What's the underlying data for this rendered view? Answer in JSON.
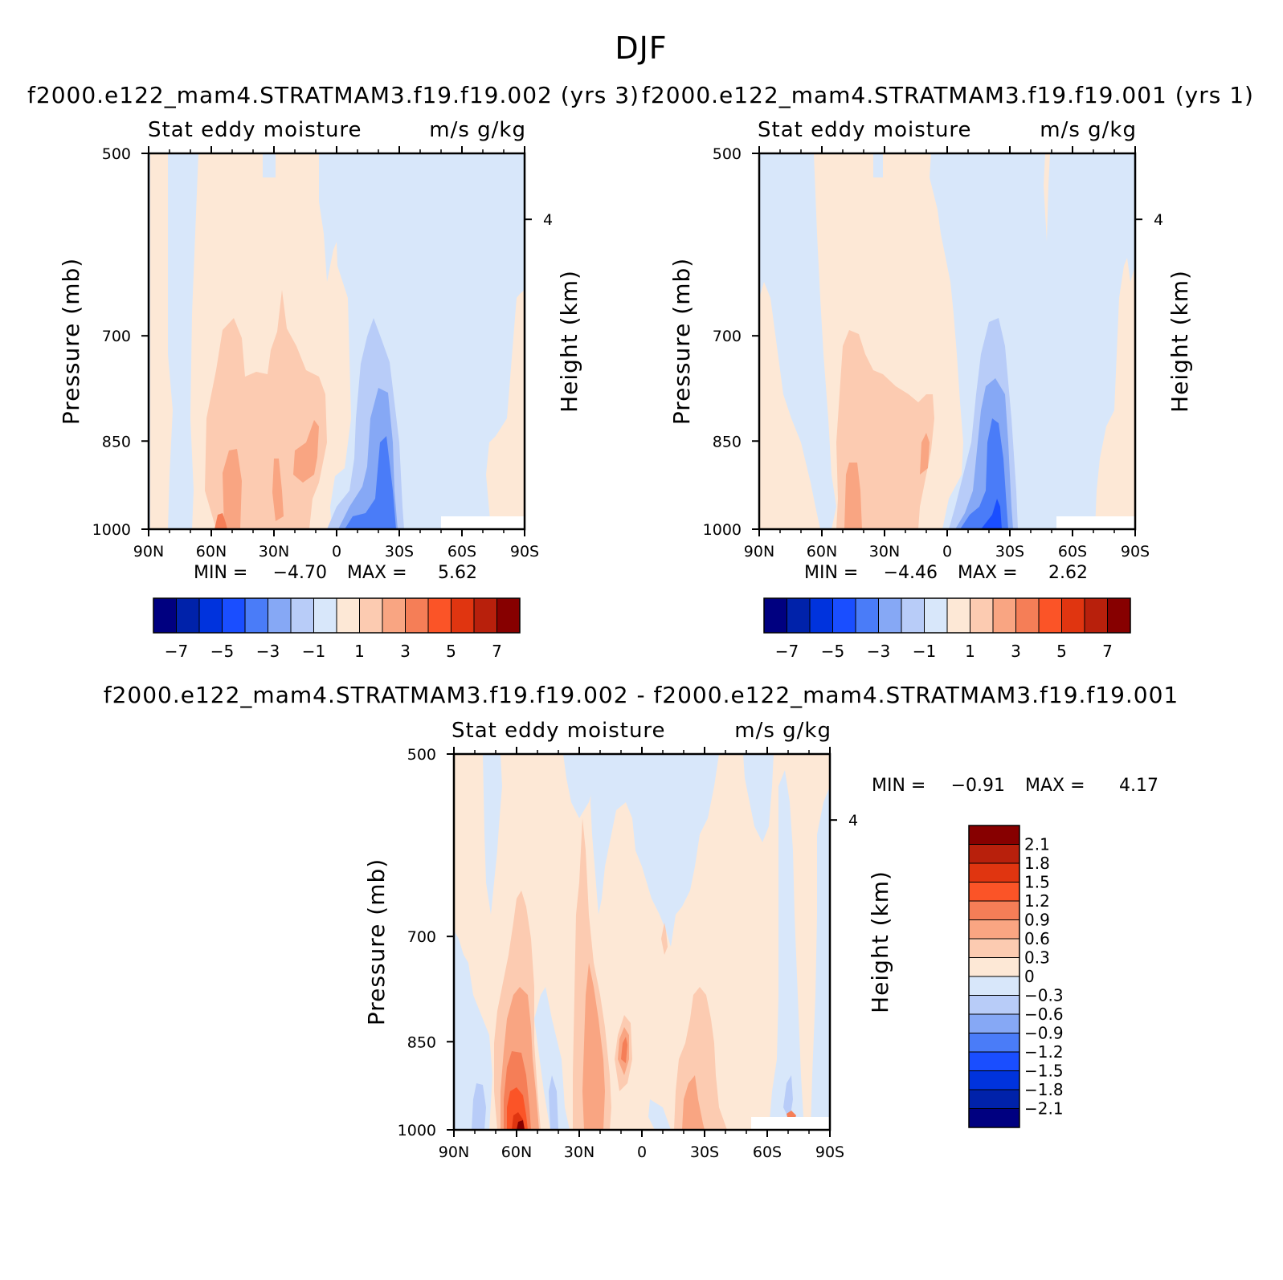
{
  "title": "DJF",
  "colors": {
    "neg": [
      "#000080",
      "#0022aa",
      "#0033dd",
      "#1a4eff",
      "#4a7cf8",
      "#86a8f5",
      "#b8ccf8",
      "#d8e7fa"
    ],
    "pos": [
      "#fde8d6",
      "#fccbb1",
      "#f9a582",
      "#f57e57",
      "#fb5427",
      "#e03510",
      "#b8200c",
      "#870000"
    ],
    "missing": "#ffffff"
  },
  "chart_data": [
    {
      "type": "heatmap",
      "title": "f2000.e122_mam4.STRATMAM3.f19.f19.002 (yrs 3)",
      "subtitle_left": "Stat eddy moisture",
      "subtitle_right": "m/s g/kg",
      "ylabel": "Pressure (mb)",
      "ylabel_right": "Height (km)",
      "x_ticks": [
        "90N",
        "60N",
        "30N",
        "0",
        "30S",
        "60S",
        "90S"
      ],
      "y_ticks": [
        "500",
        "700",
        "850",
        "1000"
      ],
      "y_right_ticks": [
        "4"
      ],
      "min_label": "MIN =",
      "min_value": "-4.70",
      "max_label": "MAX =",
      "max_value": "5.62",
      "colorbar_labels": [
        "-7",
        "-5",
        "-3",
        "-1",
        "1",
        "3",
        "5",
        "7"
      ],
      "colorbar_orientation": "horizontal"
    },
    {
      "type": "heatmap",
      "title": "f2000.e122_mam4.STRATMAM3.f19.f19.001 (yrs 1)",
      "subtitle_left": "Stat eddy moisture",
      "subtitle_right": "m/s g/kg",
      "ylabel": "Pressure (mb)",
      "ylabel_right": "Height (km)",
      "x_ticks": [
        "90N",
        "60N",
        "30N",
        "0",
        "30S",
        "60S",
        "90S"
      ],
      "y_ticks": [
        "500",
        "700",
        "850",
        "1000"
      ],
      "y_right_ticks": [
        "4"
      ],
      "min_label": "MIN =",
      "min_value": "-4.46",
      "max_label": "MAX =",
      "max_value": "2.62",
      "colorbar_labels": [
        "-7",
        "-5",
        "-3",
        "-1",
        "1",
        "3",
        "5",
        "7"
      ],
      "colorbar_orientation": "horizontal"
    },
    {
      "type": "heatmap",
      "title": "f2000.e122_mam4.STRATMAM3.f19.f19.002 - f2000.e122_mam4.STRATMAM3.f19.f19.001",
      "subtitle_left": "Stat eddy moisture",
      "subtitle_right": "m/s g/kg",
      "ylabel": "Pressure (mb)",
      "ylabel_right": "Height (km)",
      "x_ticks": [
        "90N",
        "60N",
        "30N",
        "0",
        "30S",
        "60S",
        "90S"
      ],
      "y_ticks": [
        "500",
        "700",
        "850",
        "1000"
      ],
      "y_right_ticks": [
        "4"
      ],
      "min_label": "MIN =",
      "min_value": "-0.91",
      "max_label": "MAX =",
      "max_value": "4.17",
      "colorbar_labels": [
        "2.1",
        "1.8",
        "1.5",
        "1.2",
        "0.9",
        "0.6",
        "0.3",
        "0",
        "-0.3",
        "-0.6",
        "-0.9",
        "-1.2",
        "-1.5",
        "-1.8",
        "-2.1"
      ],
      "colorbar_orientation": "vertical"
    }
  ]
}
